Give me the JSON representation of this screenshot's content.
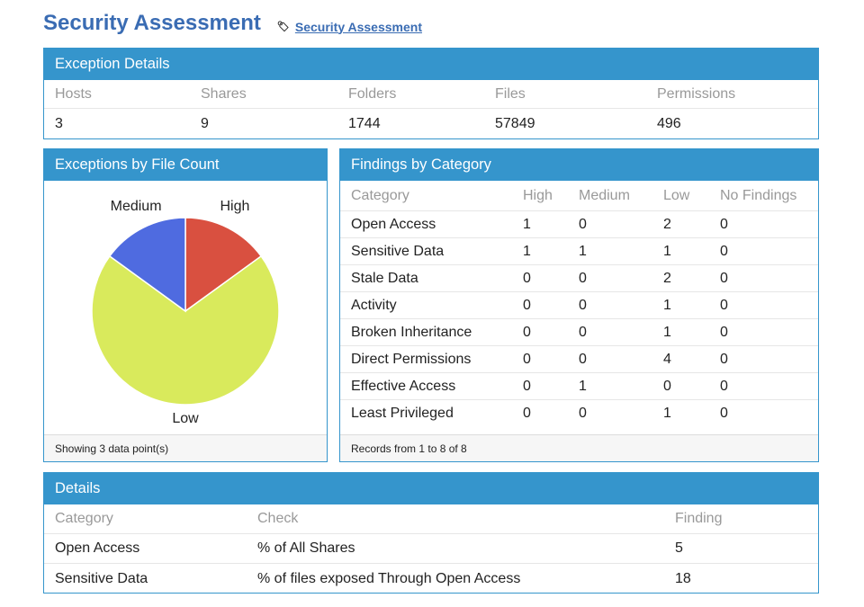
{
  "header": {
    "title": "Security Assessment",
    "breadcrumb": "Security Assessment",
    "tag_icon": "tag-icon"
  },
  "exception_details": {
    "title": "Exception Details",
    "columns": [
      "Hosts",
      "Shares",
      "Folders",
      "Files",
      "Permissions"
    ],
    "values": [
      "3",
      "9",
      "1744",
      "57849",
      "496"
    ]
  },
  "pie_panel": {
    "title": "Exceptions by File Count",
    "footer": "Showing 3 data point(s)"
  },
  "chart_data": {
    "type": "pie",
    "labels": [
      "High",
      "Low",
      "Medium"
    ],
    "values": [
      15,
      70,
      15
    ],
    "colors": [
      "#d95040",
      "#d9ea5c",
      "#4f6be0"
    ]
  },
  "findings": {
    "title": "Findings by Category",
    "columns": [
      "Category",
      "High",
      "Medium",
      "Low",
      "No Findings"
    ],
    "rows": [
      [
        "Open Access",
        "1",
        "0",
        "2",
        "0"
      ],
      [
        "Sensitive Data",
        "1",
        "1",
        "1",
        "0"
      ],
      [
        "Stale Data",
        "0",
        "0",
        "2",
        "0"
      ],
      [
        "Activity",
        "0",
        "0",
        "1",
        "0"
      ],
      [
        "Broken Inheritance",
        "0",
        "0",
        "1",
        "0"
      ],
      [
        "Direct Permissions",
        "0",
        "0",
        "4",
        "0"
      ],
      [
        "Effective Access",
        "0",
        "1",
        "0",
        "0"
      ],
      [
        "Least Privileged",
        "0",
        "0",
        "1",
        "0"
      ]
    ],
    "footer": "Records from 1 to 8 of 8"
  },
  "details": {
    "title": "Details",
    "columns": [
      "Category",
      "Check",
      "Finding"
    ],
    "rows": [
      [
        "Open Access",
        "% of All Shares",
        "5"
      ],
      [
        "Sensitive Data",
        "% of files exposed Through Open Access",
        "18"
      ]
    ]
  }
}
